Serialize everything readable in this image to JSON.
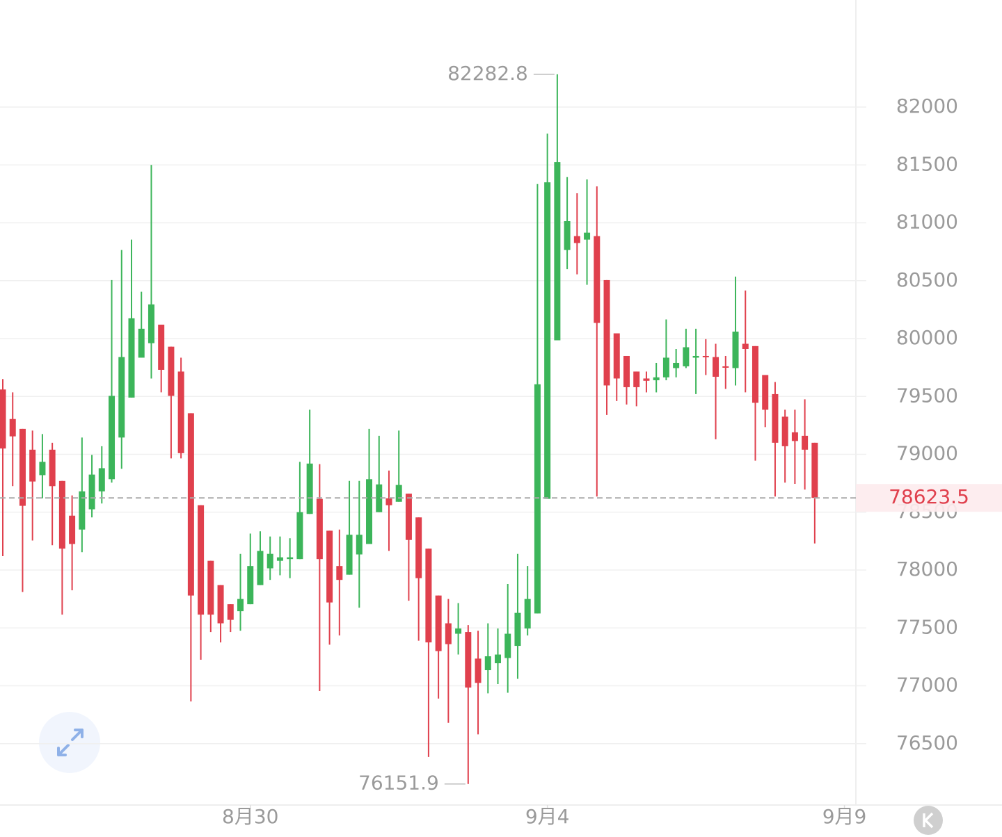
{
  "chart_data": {
    "type": "candlestick",
    "categories": [
      null,
      null,
      null,
      null,
      null,
      null,
      null,
      null,
      null,
      null,
      null,
      null,
      null,
      null,
      null,
      null,
      null,
      null,
      null,
      null,
      null,
      null,
      null,
      null,
      null,
      "8月30",
      null,
      null,
      null,
      null,
      null,
      null,
      null,
      null,
      null,
      null,
      null,
      null,
      null,
      null,
      null,
      null,
      null,
      null,
      null,
      null,
      null,
      null,
      null,
      null,
      null,
      null,
      null,
      null,
      null,
      "9月4",
      null,
      null,
      null,
      null,
      null,
      null,
      null,
      null,
      null,
      null,
      null,
      null,
      null,
      null,
      null,
      null,
      null,
      null,
      null,
      null,
      null,
      null,
      null,
      null,
      null,
      null,
      null,
      null,
      null,
      "9月9"
    ],
    "open": [
      79560,
      79305,
      79220,
      79040,
      78820,
      79040,
      78770,
      78470,
      78350,
      78525,
      78680,
      78785,
      79145,
      79490,
      79835,
      79960,
      80120,
      79930,
      79715,
      79355,
      78560,
      78080,
      77870,
      77705,
      77645,
      77705,
      77870,
      78015,
      78080,
      78095,
      78095,
      78485,
      78615,
      78340,
      78035,
      77960,
      78135,
      78225,
      78500,
      78620,
      78590,
      78660,
      78455,
      78185,
      77780,
      77540,
      77450,
      77465,
      77235,
      77135,
      77195,
      77240,
      77345,
      77495,
      77625,
      78615,
      79985,
      80765,
      80885,
      80855,
      80885,
      80505,
      80045,
      79850,
      79715,
      79655,
      79640,
      79665,
      79745,
      79760,
      79835,
      79850,
      79840,
      79760,
      79745,
      79955,
      79935,
      79685,
      79520,
      79325,
      79190,
      79160,
      79100,
      null,
      null,
      null
    ],
    "high": [
      79650,
      79535,
      79220,
      79205,
      79175,
      79100,
      78770,
      78645,
      79145,
      78995,
      79070,
      80505,
      80765,
      80855,
      80405,
      81500,
      80120,
      79930,
      79835,
      79355,
      78560,
      78080,
      77870,
      77705,
      78140,
      78315,
      78335,
      78290,
      78290,
      78275,
      78935,
      79385,
      78915,
      78340,
      78350,
      78770,
      78770,
      79220,
      79160,
      78860,
      79205,
      78660,
      78455,
      78185,
      77780,
      77750,
      77715,
      77525,
      77475,
      77540,
      77495,
      77880,
      78140,
      78035,
      81335,
      81770,
      82282.8,
      81395,
      81255,
      81375,
      81315,
      80505,
      80045,
      79850,
      79715,
      79715,
      79790,
      80165,
      79910,
      80085,
      80085,
      79995,
      79955,
      79850,
      80535,
      80415,
      79935,
      79685,
      79625,
      79385,
      79385,
      79475,
      79100,
      null,
      null,
      null
    ],
    "low": [
      78120,
      78725,
      77810,
      78255,
      78620,
      78215,
      77615,
      77825,
      78155,
      78455,
      78575,
      78755,
      78875,
      79490,
      79835,
      79655,
      79535,
      78965,
      78965,
      76865,
      77225,
      77465,
      77375,
      77465,
      77475,
      77705,
      77870,
      77915,
      77955,
      77930,
      78095,
      78485,
      76955,
      77355,
      77435,
      77960,
      77675,
      78225,
      78500,
      78165,
      78590,
      77735,
      77390,
      76385,
      76890,
      76680,
      77270,
      76151.9,
      76580,
      76935,
      77015,
      76940,
      77060,
      77435,
      77625,
      78615,
      79985,
      80600,
      80555,
      80465,
      78635,
      79340,
      79460,
      79430,
      79415,
      79535,
      79535,
      79640,
      79665,
      79745,
      79520,
      79685,
      79130,
      79565,
      79595,
      79535,
      78945,
      79235,
      78635,
      78755,
      78745,
      78695,
      78230,
      null,
      null,
      null
    ],
    "close": [
      79050,
      79155,
      78555,
      78765,
      78935,
      78725,
      78185,
      78225,
      78680,
      78825,
      78880,
      79505,
      79840,
      80175,
      80085,
      80295,
      79730,
      79505,
      79010,
      77780,
      77615,
      77615,
      77540,
      77570,
      77750,
      78035,
      78165,
      78140,
      78110,
      78110,
      78500,
      78920,
      78095,
      77720,
      77915,
      78305,
      78305,
      78785,
      78740,
      78560,
      78735,
      78260,
      77930,
      77375,
      77300,
      77360,
      77495,
      76985,
      77025,
      77255,
      77270,
      77450,
      77630,
      77750,
      79605,
      81350,
      81525,
      81015,
      80825,
      80915,
      80135,
      79595,
      79655,
      79580,
      79580,
      79635,
      79665,
      79835,
      79790,
      79925,
      79850,
      79840,
      79670,
      79750,
      80060,
      79910,
      79445,
      79385,
      79100,
      79070,
      79115,
      79040,
      78623.5,
      null,
      null,
      null
    ],
    "up_color": "#3cb55a",
    "down_color": "#e0404d",
    "ylim": [
      75970,
      82925
    ],
    "yticks": [
      76500,
      77000,
      77500,
      78000,
      78500,
      79000,
      79500,
      80000,
      80500,
      81000,
      81500,
      82000
    ],
    "grid": true
  }
}
